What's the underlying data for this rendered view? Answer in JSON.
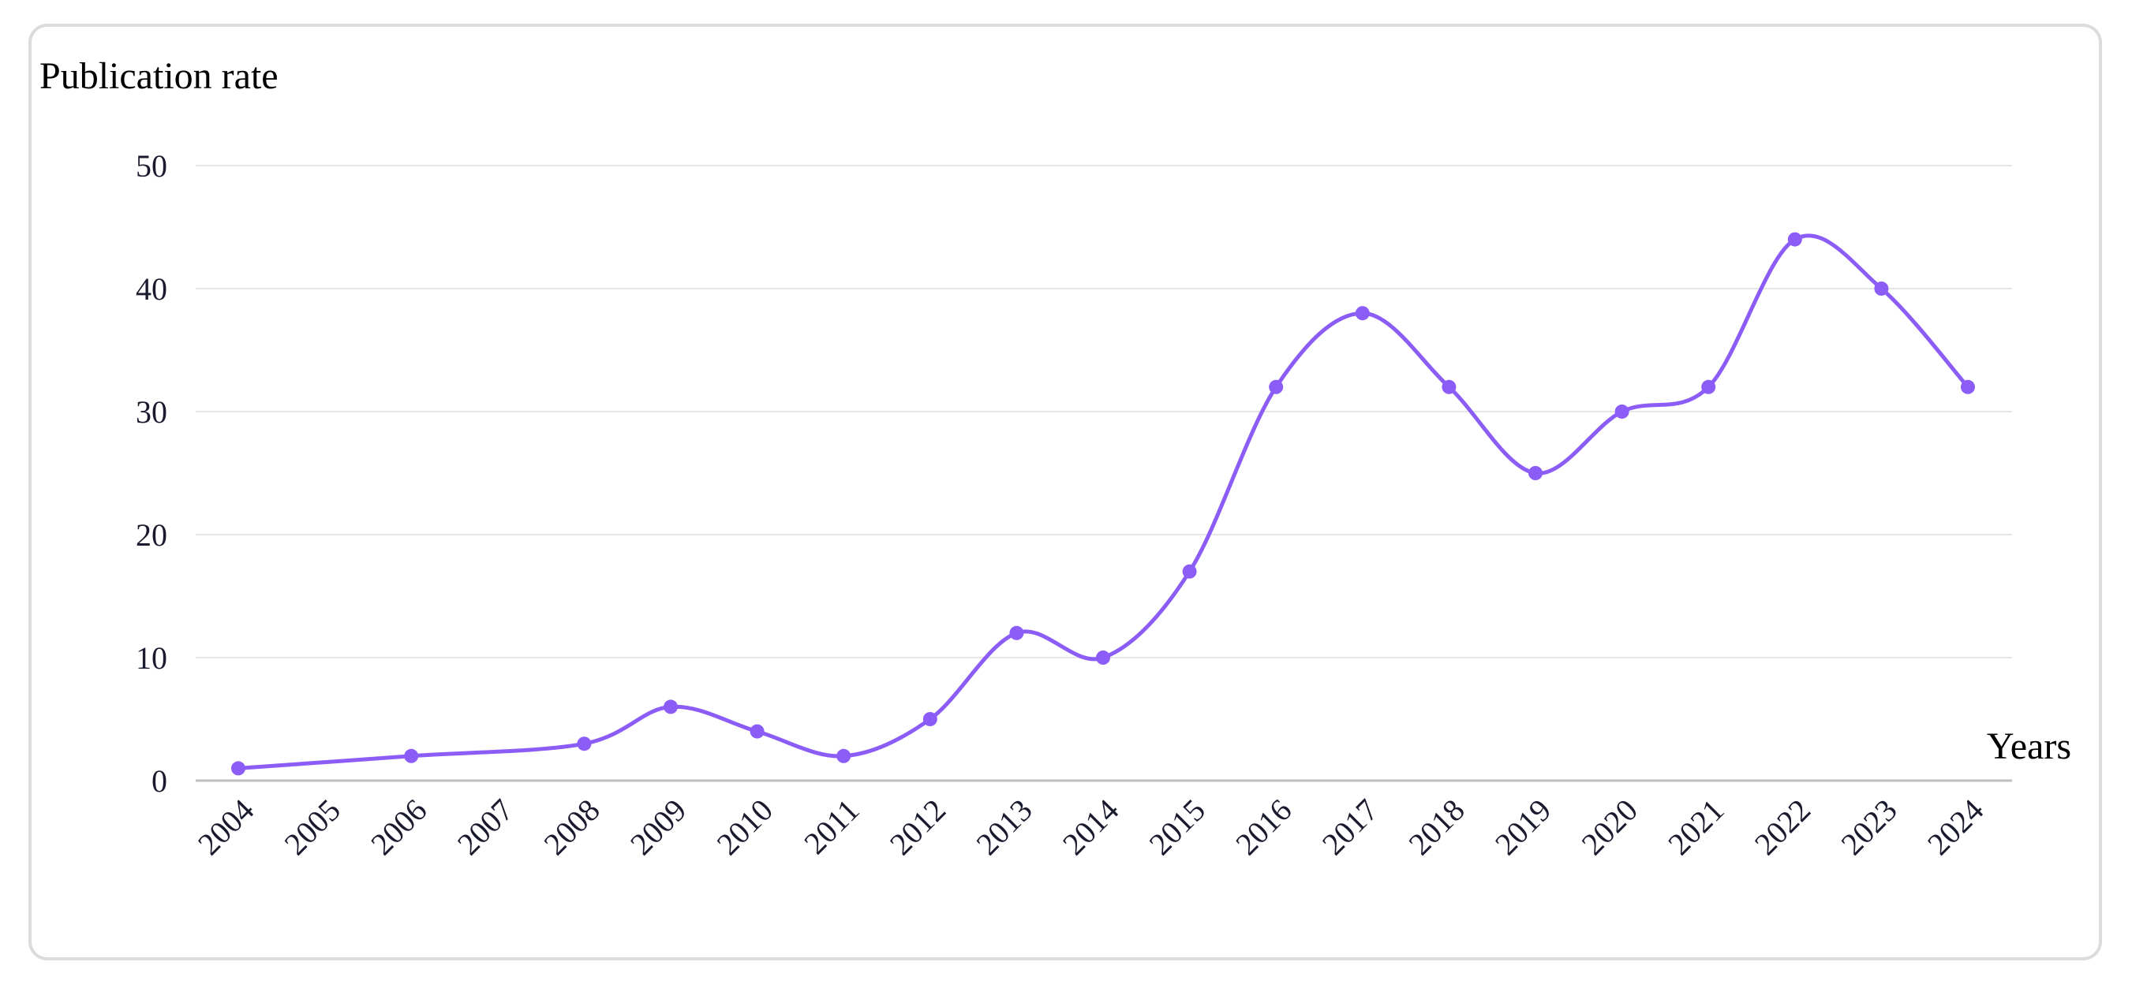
{
  "chart_data": {
    "type": "line",
    "title": "",
    "xlabel": "Years",
    "ylabel": "Publication rate",
    "categories": [
      "2004",
      "2005",
      "2006",
      "2007",
      "2008",
      "2009",
      "2010",
      "2011",
      "2012",
      "2013",
      "2014",
      "2015",
      "2016",
      "2017",
      "2018",
      "2019",
      "2020",
      "2021",
      "2022",
      "2023",
      "2024"
    ],
    "points": [
      {
        "x": "2004",
        "y": 1
      },
      {
        "x": "2006",
        "y": 2
      },
      {
        "x": "2008",
        "y": 3
      },
      {
        "x": "2009",
        "y": 6
      },
      {
        "x": "2010",
        "y": 4
      },
      {
        "x": "2011",
        "y": 2
      },
      {
        "x": "2012",
        "y": 5
      },
      {
        "x": "2013",
        "y": 12
      },
      {
        "x": "2014",
        "y": 10
      },
      {
        "x": "2015",
        "y": 17
      },
      {
        "x": "2016",
        "y": 32
      },
      {
        "x": "2017",
        "y": 38
      },
      {
        "x": "2018",
        "y": 32
      },
      {
        "x": "2019",
        "y": 25
      },
      {
        "x": "2020",
        "y": 30
      },
      {
        "x": "2021",
        "y": 32
      },
      {
        "x": "2022",
        "y": 44
      },
      {
        "x": "2023",
        "y": 40
      },
      {
        "x": "2024",
        "y": 32
      }
    ],
    "yticks": [
      0,
      10,
      20,
      30,
      40,
      50
    ],
    "ylim": [
      0,
      50
    ],
    "grid": true,
    "legend": "none",
    "line_color": "#8b5cf6",
    "grid_color": "#e6e6e6",
    "axis_color": "#bfbfbf"
  }
}
